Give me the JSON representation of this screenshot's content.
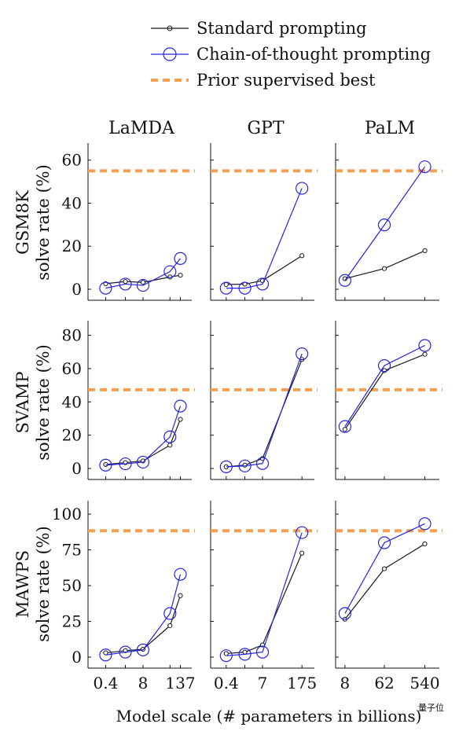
{
  "legend": {
    "standard": "Standard prompting",
    "cot": "Chain-of-thought prompting",
    "prior": "Prior supervised best"
  },
  "colors": {
    "standard": "#1a1a1a",
    "cot": "#2424e0",
    "prior": "#f5a050"
  },
  "columns": [
    "LaMDA",
    "GPT",
    "PaLM"
  ],
  "rows": [
    {
      "dataset": "GSM8K",
      "ylabel": "solve rate (%)"
    },
    {
      "dataset": "SVAMP",
      "ylabel": "solve rate (%)"
    },
    {
      "dataset": "MAWPS",
      "ylabel": "solve rate (%)"
    }
  ],
  "xlabel": "Model scale (# parameters in billions)",
  "watermark": "量子位",
  "chart_data": [
    {
      "type": "line",
      "row": "GSM8K",
      "column": "LaMDA",
      "x": [
        "0.4",
        "2",
        "8",
        "68",
        "137"
      ],
      "ylim": [
        0,
        65
      ],
      "yticks": [
        0,
        20,
        40,
        60
      ],
      "prior_best": 55,
      "series": [
        {
          "name": "Standard prompting",
          "values": [
            2.6,
            3.6,
            3.2,
            5.7,
            6.5
          ]
        },
        {
          "name": "Chain-of-thought prompting",
          "values": [
            0.5,
            2.4,
            1.8,
            8.2,
            14.3
          ]
        }
      ]
    },
    {
      "type": "line",
      "row": "GSM8K",
      "column": "GPT",
      "x": [
        "0.4",
        "1.3",
        "7",
        "175"
      ],
      "ylim": [
        0,
        65
      ],
      "yticks": [
        0,
        20,
        40,
        60
      ],
      "prior_best": 55,
      "series": [
        {
          "name": "Standard prompting",
          "values": [
            2.2,
            2.4,
            4.0,
            15.6
          ]
        },
        {
          "name": "Chain-of-thought prompting",
          "values": [
            0.5,
            0.5,
            2.4,
            46.9
          ]
        }
      ]
    },
    {
      "type": "line",
      "row": "GSM8K",
      "column": "PaLM",
      "x": [
        "8",
        "62",
        "540"
      ],
      "ylim": [
        0,
        65
      ],
      "yticks": [
        0,
        20,
        40,
        60
      ],
      "prior_best": 55,
      "series": [
        {
          "name": "Standard prompting",
          "values": [
            4.9,
            9.6,
            17.9
          ]
        },
        {
          "name": "Chain-of-thought prompting",
          "values": [
            4.1,
            29.9,
            56.9
          ]
        }
      ]
    },
    {
      "type": "line",
      "row": "SVAMP",
      "column": "LaMDA",
      "x": [
        "0.4",
        "2",
        "8",
        "68",
        "137"
      ],
      "ylim": [
        0,
        85
      ],
      "yticks": [
        0,
        20,
        40,
        60,
        80
      ],
      "prior_best": 47.3,
      "series": [
        {
          "name": "Standard prompting",
          "values": [
            2.4,
            3.5,
            4.5,
            14.0,
            29.5
          ]
        },
        {
          "name": "Chain-of-thought prompting",
          "values": [
            2.0,
            2.8,
            3.8,
            19.0,
            37.5
          ]
        }
      ]
    },
    {
      "type": "line",
      "row": "SVAMP",
      "column": "GPT",
      "x": [
        "0.4",
        "1.3",
        "7",
        "175"
      ],
      "ylim": [
        0,
        85
      ],
      "yticks": [
        0,
        20,
        40,
        60,
        80
      ],
      "prior_best": 47.3,
      "series": [
        {
          "name": "Standard prompting",
          "values": [
            1.0,
            2.0,
            6.0,
            65.5
          ]
        },
        {
          "name": "Chain-of-thought prompting",
          "values": [
            1.0,
            1.5,
            3.0,
            68.9
          ]
        }
      ]
    },
    {
      "type": "line",
      "row": "SVAMP",
      "column": "PaLM",
      "x": [
        "8",
        "62",
        "540"
      ],
      "ylim": [
        0,
        85
      ],
      "yticks": [
        0,
        20,
        40,
        60,
        80
      ],
      "prior_best": 47.3,
      "series": [
        {
          "name": "Standard prompting",
          "values": [
            23.5,
            58.8,
            68.6
          ]
        },
        {
          "name": "Chain-of-thought prompting",
          "values": [
            25.2,
            61.8,
            73.9
          ]
        }
      ]
    },
    {
      "type": "line",
      "row": "MAWPS",
      "column": "LaMDA",
      "x": [
        "0.4",
        "2",
        "8",
        "68",
        "137"
      ],
      "ylim": [
        0,
        105
      ],
      "yticks": [
        0,
        25,
        50,
        75,
        100
      ],
      "prior_best": 88.4,
      "series": [
        {
          "name": "Standard prompting",
          "values": [
            3.0,
            4.5,
            5.5,
            22.0,
            43.0
          ]
        },
        {
          "name": "Chain-of-thought prompting",
          "values": [
            1.5,
            3.5,
            5.0,
            30.5,
            57.9
          ]
        }
      ]
    },
    {
      "type": "line",
      "row": "MAWPS",
      "column": "GPT",
      "x": [
        "0.4",
        "1.3",
        "7",
        "175"
      ],
      "ylim": [
        0,
        105
      ],
      "yticks": [
        0,
        25,
        50,
        75,
        100
      ],
      "prior_best": 88.4,
      "series": [
        {
          "name": "Standard prompting",
          "values": [
            2.5,
            3.5,
            8.5,
            72.7
          ]
        },
        {
          "name": "Chain-of-thought prompting",
          "values": [
            1.0,
            2.0,
            3.5,
            87.1
          ]
        }
      ]
    },
    {
      "type": "line",
      "row": "MAWPS",
      "column": "PaLM",
      "x": [
        "8",
        "62",
        "540"
      ],
      "ylim": [
        0,
        105
      ],
      "yticks": [
        0,
        25,
        50,
        75,
        100
      ],
      "prior_best": 88.4,
      "series": [
        {
          "name": "Standard prompting",
          "values": [
            26.5,
            61.8,
            79.2
          ]
        },
        {
          "name": "Chain-of-thought prompting",
          "values": [
            30.5,
            80.0,
            93.3
          ]
        }
      ]
    }
  ],
  "x_axis_ticks": {
    "LaMDA": [
      "0.4",
      "8",
      "137"
    ],
    "GPT": [
      "0.4",
      "7",
      "175"
    ],
    "PaLM": [
      "8",
      "62",
      "540"
    ]
  }
}
